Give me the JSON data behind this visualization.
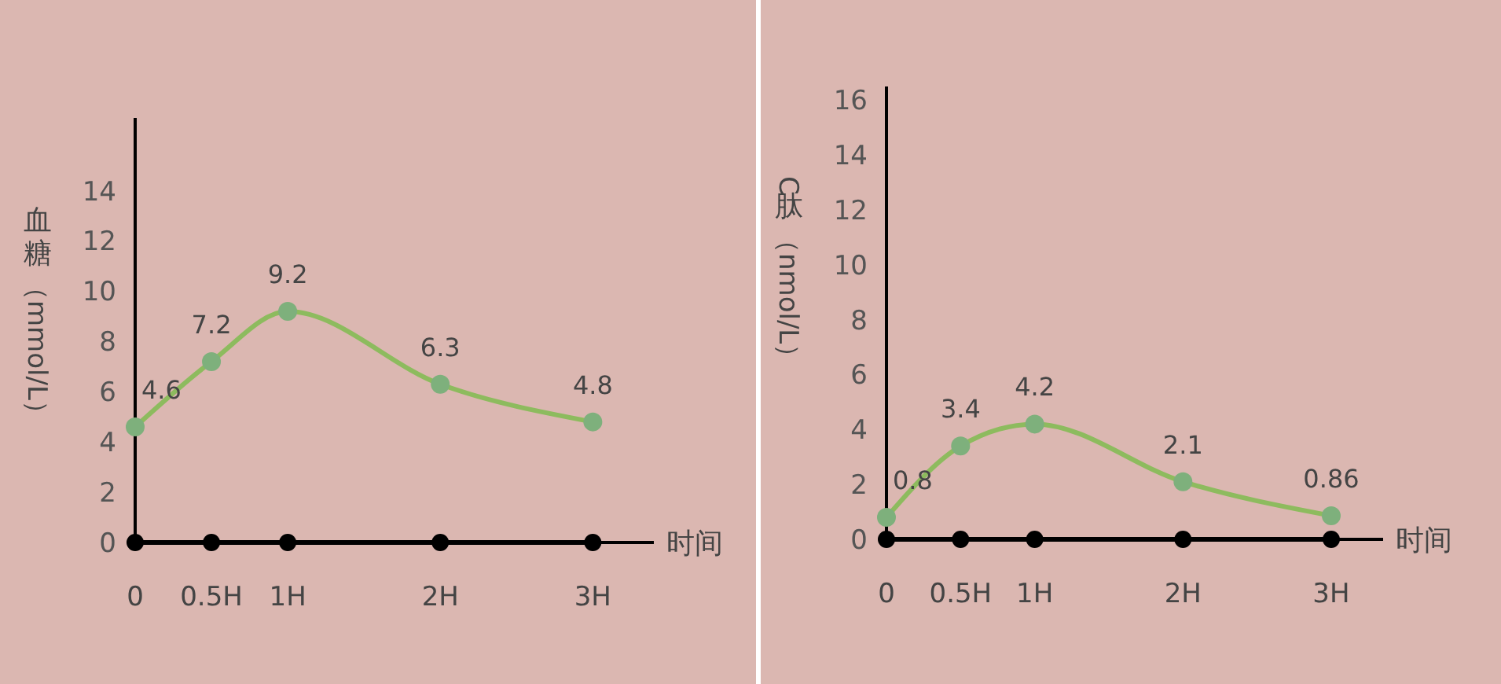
{
  "chart_data": [
    {
      "type": "line",
      "ylabel": "血糖（mmol/L）",
      "xlabel": "时间",
      "x": [
        0,
        0.5,
        1,
        2,
        3
      ],
      "xlim": [
        0,
        3.4
      ],
      "xticks": [
        0,
        {
          "value": 0.5,
          "label": "0.5H"
        },
        {
          "value": 1,
          "label": "1H"
        },
        {
          "value": 2,
          "label": "2H"
        },
        {
          "value": 3,
          "label": "3H"
        }
      ],
      "ylim": [
        0,
        16.9
      ],
      "yticks": [
        0,
        2,
        4,
        6,
        8,
        10,
        12,
        14
      ],
      "marker": "circle",
      "grid": false,
      "series": [
        {
          "color": "#8dbb5e",
          "values": [
            4.6,
            7.2,
            9.2,
            6.3,
            4.8
          ],
          "value_labels": [
            "4.6",
            "7.2",
            "9.2",
            "6.3",
            "4.8"
          ]
        },
        {
          "color": "#000000",
          "values": [
            0,
            0,
            0,
            0,
            0
          ]
        }
      ]
    },
    {
      "type": "line",
      "ylabel": "C肽（nmol/L）",
      "xlabel": "时间",
      "x": [
        0,
        0.5,
        1,
        2,
        3
      ],
      "xlim": [
        0,
        3.35
      ],
      "xticks": [
        0,
        {
          "value": 0.5,
          "label": "0.5H"
        },
        {
          "value": 1,
          "label": "1H"
        },
        {
          "value": 2,
          "label": "2H"
        },
        {
          "value": 3,
          "label": "3H"
        }
      ],
      "ylim": [
        0,
        16.5
      ],
      "yticks": [
        0,
        2,
        4,
        6,
        8,
        10,
        12,
        14,
        16
      ],
      "marker": "circle",
      "grid": false,
      "series": [
        {
          "color": "#8dbb5e",
          "values": [
            0.8,
            3.4,
            4.2,
            2.1,
            0.86
          ],
          "value_labels": [
            "0.8",
            "3.4",
            "4.2",
            "2.1",
            "0.86"
          ]
        },
        {
          "color": "#000000",
          "values": [
            0,
            0,
            0,
            0,
            0
          ]
        }
      ]
    }
  ]
}
